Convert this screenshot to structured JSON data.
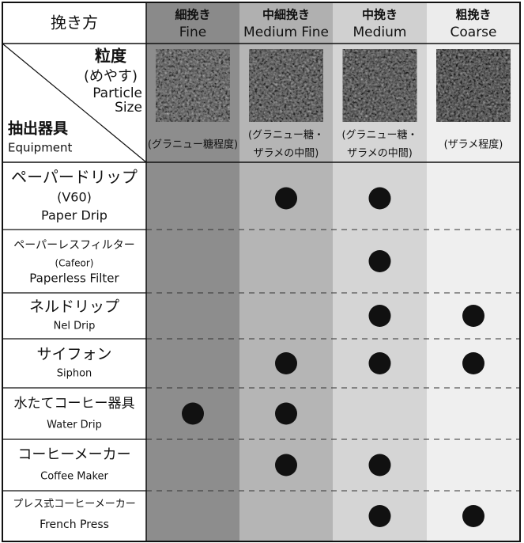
{
  "header": {
    "corner": "挽き方",
    "columns": [
      {
        "ja": "細挽き",
        "en": "Fine"
      },
      {
        "ja": "中細挽き",
        "en": "Medium Fine"
      },
      {
        "ja": "中挽き",
        "en": "Medium"
      },
      {
        "ja": "粗挽き",
        "en": "Coarse"
      }
    ]
  },
  "particle_row": {
    "labels": [
      "粒度",
      "(めやす)",
      "Particle",
      "Size"
    ],
    "equipment_labels": [
      "抽出器具",
      "Equipment"
    ],
    "notes": [
      [
        "(グラニュー糖程度)"
      ],
      [
        "(グラニュー糖・",
        "ザラメの中間)"
      ],
      [
        "(グラニュー糖・",
        "ザラメの中間)"
      ],
      [
        "(ザラメ程度)"
      ]
    ]
  },
  "rows": [
    {
      "lines": [
        "ペーパードリップ",
        "(V60)",
        "Paper Drip"
      ],
      "marks": [
        false,
        true,
        true,
        false
      ]
    },
    {
      "lines": [
        "ペーパーレスフィルター",
        "(Cafeor)",
        "Paperless Filter"
      ],
      "marks": [
        false,
        false,
        true,
        false
      ]
    },
    {
      "lines": [
        "ネルドリップ",
        "Nel Drip"
      ],
      "marks": [
        false,
        false,
        true,
        true
      ]
    },
    {
      "lines": [
        "サイフォン",
        "Siphon"
      ],
      "marks": [
        false,
        true,
        true,
        true
      ]
    },
    {
      "lines": [
        "水たてコーヒー器具",
        "Water Drip"
      ],
      "marks": [
        true,
        true,
        false,
        false
      ]
    },
    {
      "lines": [
        "コーヒーメーカー",
        "Coffee Maker"
      ],
      "marks": [
        false,
        true,
        true,
        false
      ]
    },
    {
      "lines": [
        "プレス式コーヒーメーカー",
        "French Press"
      ],
      "marks": [
        false,
        false,
        true,
        true
      ]
    }
  ]
}
